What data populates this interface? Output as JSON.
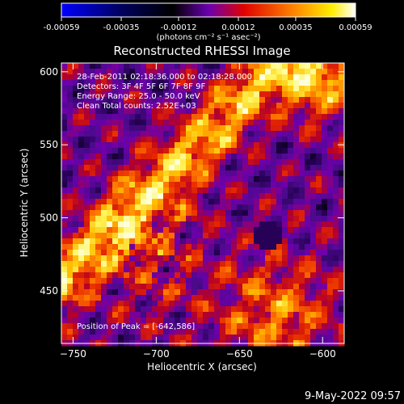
{
  "colorbar": {
    "ticks": [
      "-0.00059",
      "-0.00035",
      "-0.00012",
      "0.00012",
      "0.00035",
      "0.00059"
    ],
    "tick_values": [
      -0.00059,
      -0.00035,
      -0.00012,
      0.00012,
      0.00035,
      0.00059
    ],
    "unit_label": "(photons cm⁻² s⁻¹ asec⁻²)",
    "palette": [
      "#0000ff",
      "#000000",
      "#7f00ff",
      "#ff0000",
      "#ffa500",
      "#ffff00",
      "#ffffff"
    ]
  },
  "chart_data": {
    "type": "heatmap",
    "title": "Reconstructed RHESSI Image",
    "xlabel": "Heliocentric X (arcsec)",
    "ylabel": "Heliocentric Y (arcsec)",
    "xlim": [
      -757,
      -587
    ],
    "ylim": [
      414,
      606
    ],
    "x_ticks": [
      -750,
      -700,
      -650,
      -600
    ],
    "y_ticks": [
      450,
      500,
      550,
      600
    ],
    "annotations": [
      "28-Feb-2011 02:18:36.000 to 02:18:28.000",
      "Detectors: 3F 4F 5F 6F 7F 8F 9F",
      "Energy Range: 25.0 - 50.0 keV",
      "Clean    Total counts: 2.52E+03"
    ],
    "peak_label": "Position of Peak = [-642,586]",
    "peak_position": [
      -642,
      586
    ]
  },
  "footer": {
    "date": "9-May-2022 09:57"
  }
}
